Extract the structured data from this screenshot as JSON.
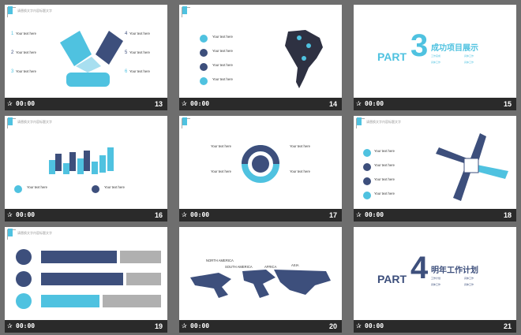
{
  "colors": {
    "accent": "#4fc2e0",
    "navy": "#3d4f7c",
    "gray": "#b0b0b0"
  },
  "slides": [
    {
      "num": "13",
      "time": "00:00"
    },
    {
      "num": "14",
      "time": "00:00"
    },
    {
      "num": "15",
      "time": "00:00"
    },
    {
      "num": "16",
      "time": "00:00"
    },
    {
      "num": "17",
      "time": "00:00"
    },
    {
      "num": "18",
      "time": "00:00"
    },
    {
      "num": "19",
      "time": "00:00"
    },
    {
      "num": "20",
      "time": "00:00"
    },
    {
      "num": "21",
      "time": "00:00"
    }
  ],
  "texts": {
    "header": "请替换文字内容标题文字",
    "your_text": "Your text here",
    "numbers": [
      "1",
      "2",
      "3",
      "4",
      "5",
      "6"
    ],
    "part3_word": "PART",
    "part3_digit": "3",
    "part3_title": "成功项目展示",
    "part3_items": [
      "工作完成",
      "具体工作",
      "具体工作",
      "具体工作"
    ],
    "part4_word": "PART",
    "part4_digit": "4",
    "part4_title": "明年工作计划",
    "part4_items": [
      "工作计划",
      "具体工作",
      "具体工作",
      "具体工作"
    ],
    "map_labels": [
      "NORTH AMERICA",
      "SOUTH AMERICA",
      "AFRICA",
      "ASIA"
    ]
  }
}
